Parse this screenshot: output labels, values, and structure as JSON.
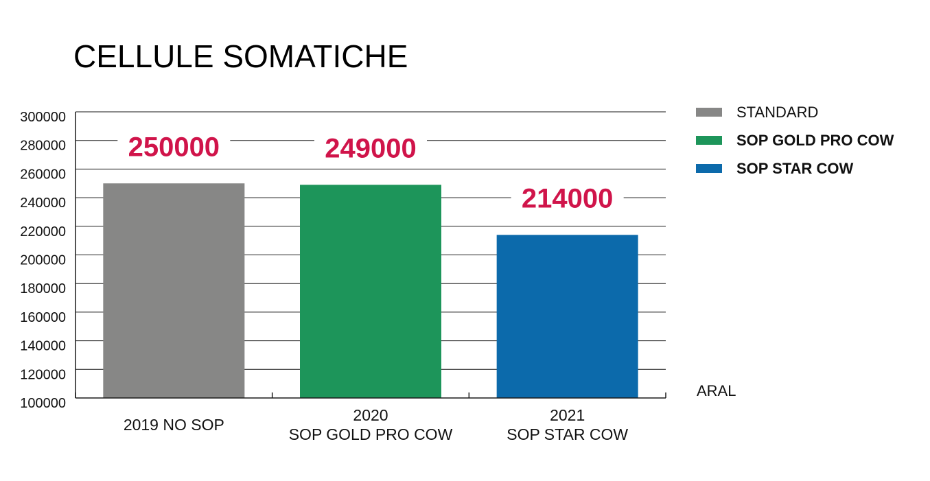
{
  "chart_data": {
    "type": "bar",
    "title": "CELLULE SOMATICHE",
    "categories": [
      [
        "2019 NO SOP"
      ],
      [
        "2020",
        "SOP GOLD PRO COW"
      ],
      [
        "2021",
        "SOP STAR COW"
      ]
    ],
    "values": [
      250000,
      249000,
      214000
    ],
    "data_labels": [
      "250000",
      "249000",
      "214000"
    ],
    "bar_colors": [
      "#878786",
      "#1d955a",
      "#0c6aab"
    ],
    "label_color": "#d0144a",
    "ylim": [
      100000,
      300000
    ],
    "yticks": [
      100000,
      120000,
      140000,
      160000,
      180000,
      200000,
      220000,
      240000,
      260000,
      280000,
      300000
    ],
    "grid": true,
    "legend_position": "right",
    "legend": [
      {
        "name": "STANDARD",
        "color": "#878786",
        "bold": false
      },
      {
        "name": "SOP GOLD PRO COW",
        "color": "#1d955a",
        "bold": true
      },
      {
        "name": "SOP STAR COW",
        "color": "#0c6aab",
        "bold": true
      }
    ],
    "annotation": "ARAL"
  }
}
